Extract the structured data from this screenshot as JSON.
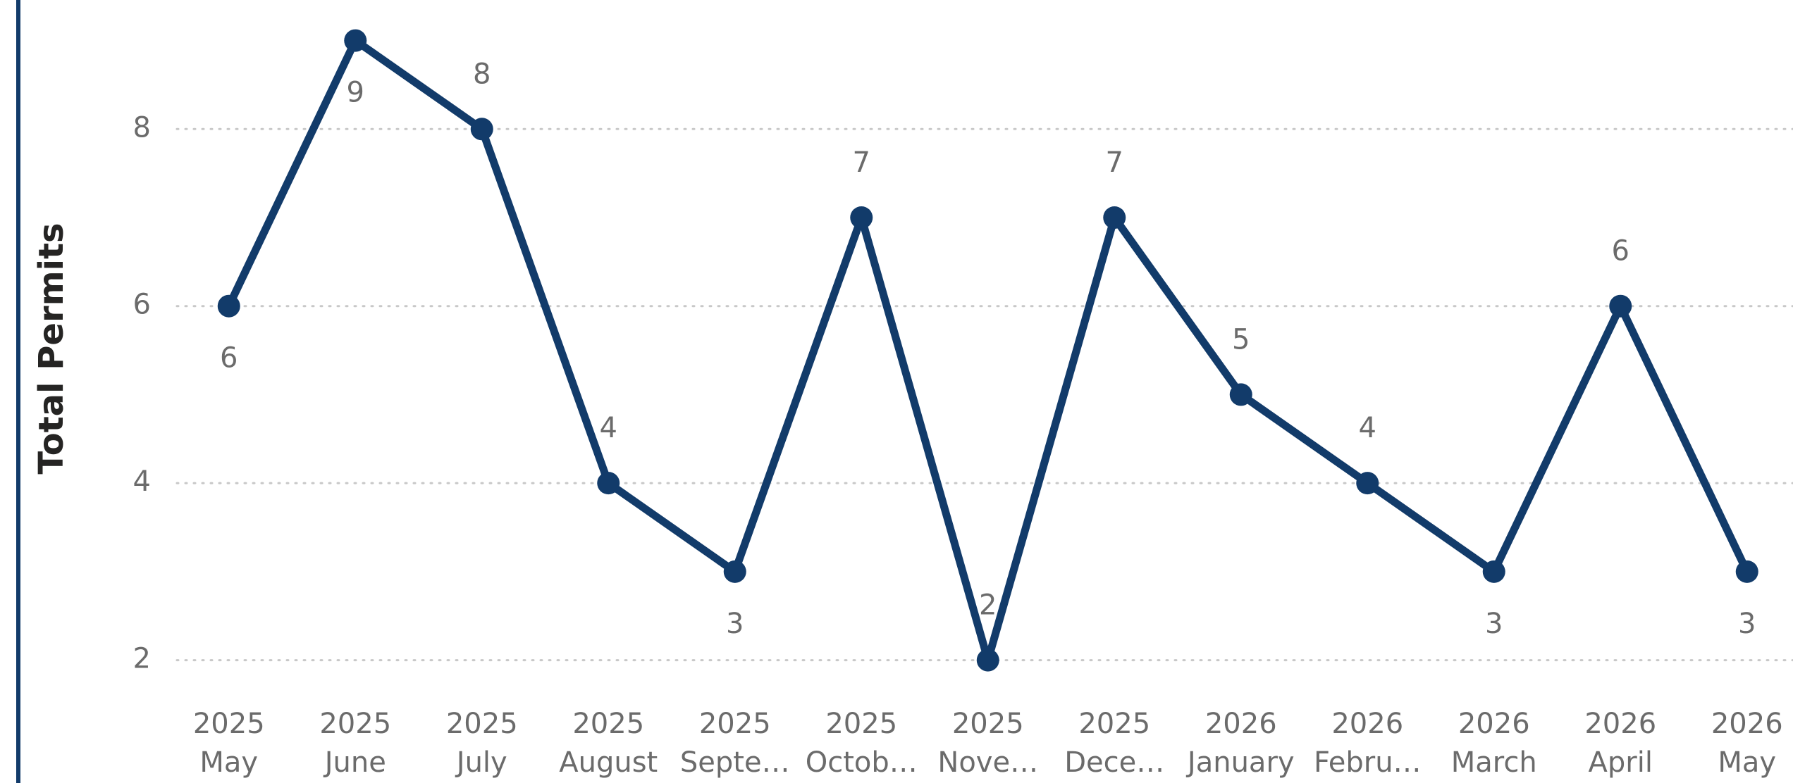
{
  "chart_data": {
    "type": "line",
    "y_label": "Total Permits",
    "categories": [
      [
        "2025",
        "May"
      ],
      [
        "2025",
        "June"
      ],
      [
        "2025",
        "July"
      ],
      [
        "2025",
        "August"
      ],
      [
        "2025",
        "Septe…"
      ],
      [
        "2025",
        "Octob…"
      ],
      [
        "2025",
        "Nove…"
      ],
      [
        "2025",
        "Dece…"
      ],
      [
        "2026",
        "January"
      ],
      [
        "2026",
        "Febru…"
      ],
      [
        "2026",
        "March"
      ],
      [
        "2026",
        "April"
      ],
      [
        "2026",
        "May"
      ]
    ],
    "series": [
      {
        "name": "Total Permits",
        "color": "#123b6a",
        "values": [
          6,
          9,
          8,
          4,
          3,
          7,
          2,
          7,
          5,
          4,
          3,
          6,
          3
        ]
      }
    ],
    "ylim": [
      1.75,
      9.45
    ],
    "yticks": [
      2,
      4,
      6,
      8
    ],
    "grid": true
  }
}
